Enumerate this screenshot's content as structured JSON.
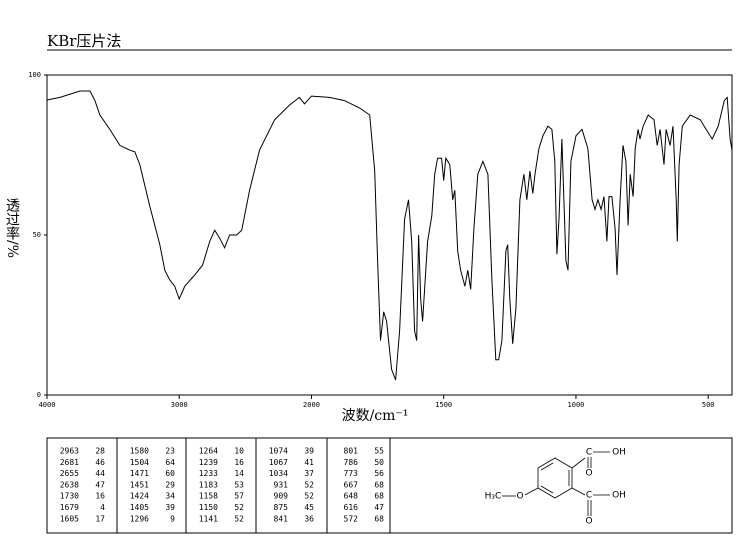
{
  "header": "KBr压片法",
  "chart_data": {
    "type": "line",
    "x_label": "波数/cm⁻¹",
    "y_label": "透过率/%",
    "color": "#000000",
    "xlim": [
      4000,
      410
    ],
    "x_break": 2000,
    "x_expansion": 2,
    "xticks": [
      4000,
      3000,
      2000,
      1500,
      1000,
      500
    ],
    "ylim": [
      0,
      100
    ],
    "yticks": [
      0,
      50,
      100
    ],
    "x": [
      4000,
      3902,
      3751,
      3675,
      3638,
      3600,
      3525,
      3449,
      3374,
      3336,
      3298,
      3223,
      3147,
      3109,
      3072,
      3034,
      3000,
      2958,
      2883,
      2823,
      2770,
      2732,
      2694,
      2657,
      2619,
      2566,
      2528,
      2468,
      2393,
      2279,
      2166,
      2091,
      2053,
      2000,
      1932,
      1875,
      1818,
      1780,
      1761,
      1750,
      1739,
      1727,
      1716,
      1697,
      1682,
      1667,
      1648,
      1633,
      1621,
      1610,
      1602,
      1595,
      1587,
      1580,
      1561,
      1545,
      1534,
      1523,
      1508,
      1500,
      1492,
      1477,
      1466,
      1458,
      1447,
      1436,
      1420,
      1409,
      1398,
      1386,
      1371,
      1352,
      1333,
      1318,
      1303,
      1292,
      1280,
      1265,
      1258,
      1250,
      1239,
      1227,
      1212,
      1197,
      1186,
      1174,
      1163,
      1155,
      1140,
      1125,
      1106,
      1091,
      1080,
      1072,
      1064,
      1053,
      1038,
      1030,
      1019,
      1000,
      977,
      955,
      939,
      928,
      917,
      905,
      894,
      883,
      875,
      864,
      852,
      845,
      833,
      822,
      811,
      803,
      795,
      784,
      776,
      765,
      758,
      746,
      727,
      705,
      693,
      682,
      674,
      667,
      659,
      644,
      633,
      621,
      617,
      610,
      598,
      568,
      530,
      508,
      485,
      462,
      439,
      428,
      417,
      410
    ],
    "values": [
      92.2,
      93,
      95,
      95,
      92,
      87.5,
      83,
      78,
      76.5,
      76,
      72,
      59,
      47,
      39,
      36,
      34,
      30,
      34,
      37.5,
      40.6,
      48,
      51.5,
      49,
      46,
      50,
      50,
      51.5,
      64,
      76.5,
      86,
      90.6,
      93,
      91,
      93.4,
      93,
      92,
      89.7,
      87.5,
      70,
      42,
      17,
      26,
      23,
      8,
      4.7,
      20,
      55,
      61,
      48,
      20,
      17,
      50,
      30,
      23,
      48,
      56,
      69,
      74,
      74,
      67,
      74,
      72,
      61,
      64,
      45,
      39,
      34,
      39,
      33,
      52,
      69,
      73,
      69,
      36,
      11,
      11,
      17,
      45,
      47,
      30,
      16,
      27,
      61,
      69,
      61,
      70,
      63,
      69,
      77,
      81,
      84,
      83,
      73,
      44,
      55,
      80,
      42,
      39,
      73,
      81,
      83,
      77,
      61,
      58,
      61,
      58,
      62,
      48,
      62,
      62,
      52,
      37.5,
      61,
      78,
      73,
      53,
      69,
      62,
      77,
      83,
      80,
      84,
      87.5,
      86,
      78,
      83,
      77,
      72,
      83,
      78,
      84,
      61,
      48,
      72,
      84,
      87.5,
      86,
      83,
      80,
      84,
      92,
      93,
      80,
      76.5
    ]
  },
  "peak_table": [
    [
      [
        2963,
        28
      ],
      [
        2681,
        46
      ],
      [
        2655,
        44
      ],
      [
        2638,
        47
      ],
      [
        1730,
        16
      ],
      [
        1679,
        4
      ],
      [
        1605,
        17
      ]
    ],
    [
      [
        1580,
        23
      ],
      [
        1504,
        64
      ],
      [
        1471,
        60
      ],
      [
        1451,
        29
      ],
      [
        1424,
        34
      ],
      [
        1405,
        39
      ],
      [
        1296,
        9
      ]
    ],
    [
      [
        1264,
        10
      ],
      [
        1239,
        16
      ],
      [
        1233,
        14
      ],
      [
        1183,
        53
      ],
      [
        1158,
        57
      ],
      [
        1150,
        52
      ],
      [
        1141,
        52
      ]
    ],
    [
      [
        1074,
        39
      ],
      [
        1067,
        41
      ],
      [
        1034,
        37
      ],
      [
        931,
        52
      ],
      [
        909,
        52
      ],
      [
        875,
        45
      ],
      [
        841,
        36
      ]
    ],
    [
      [
        801,
        55
      ],
      [
        786,
        50
      ],
      [
        773,
        56
      ],
      [
        667,
        68
      ],
      [
        648,
        68
      ],
      [
        616,
        47
      ],
      [
        572,
        68
      ]
    ]
  ],
  "structure": {
    "labels": [
      "C",
      "OH",
      "O",
      "C",
      "OH",
      "O",
      "H₃C",
      "O"
    ]
  }
}
